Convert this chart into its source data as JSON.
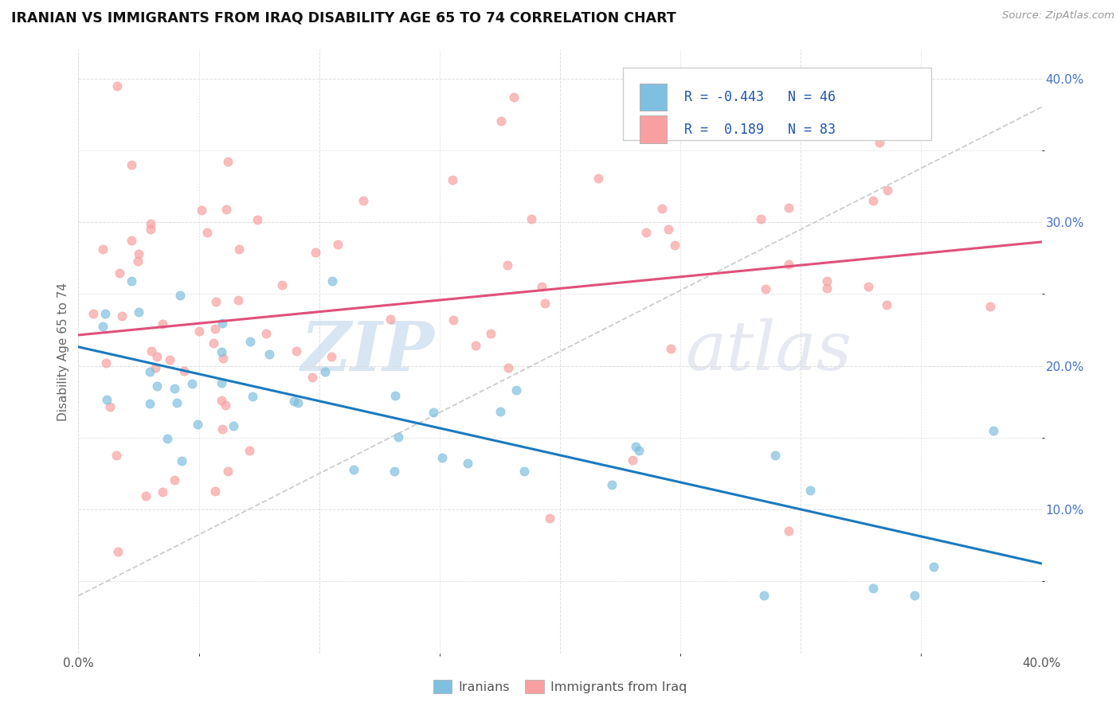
{
  "title": "IRANIAN VS IMMIGRANTS FROM IRAQ DISABILITY AGE 65 TO 74 CORRELATION CHART",
  "source": "Source: ZipAtlas.com",
  "ylabel": "Disability Age 65 to 74",
  "xlim": [
    0.0,
    0.4
  ],
  "ylim": [
    0.0,
    0.42
  ],
  "iranians_color": "#7fbfdf",
  "iraqis_color": "#f8a0a0",
  "iranians_line_color": "#1a7abf",
  "iraqis_line_color": "#e0507a",
  "r_iranians": -0.443,
  "n_iranians": 46,
  "r_iraqis": 0.189,
  "n_iraqis": 83,
  "legend_label_1": "Iranians",
  "legend_label_2": "Immigrants from Iraq",
  "watermark_zip": "ZIP",
  "watermark_atlas": "atlas",
  "diag_color": "#cccccc"
}
